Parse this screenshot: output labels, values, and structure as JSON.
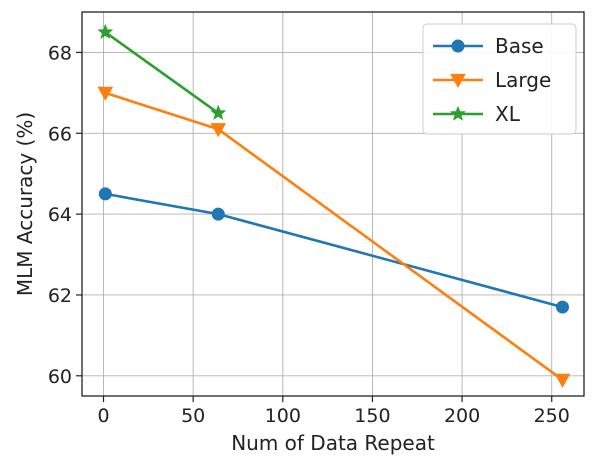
{
  "chart_data": {
    "type": "line",
    "title": "",
    "xlabel": "Num of Data Repeat",
    "ylabel": "MLM Accuracy (%)",
    "xlim": [
      -12,
      268
    ],
    "ylim": [
      59.5,
      69.0
    ],
    "xticks": [
      0,
      50,
      100,
      150,
      200,
      250
    ],
    "yticks": [
      60,
      62,
      64,
      66,
      68
    ],
    "grid": true,
    "legend": "top-right",
    "series": [
      {
        "name": "Base",
        "color": "#1f77b4",
        "marker": "circle",
        "x": [
          1,
          64,
          256
        ],
        "y": [
          64.5,
          64.0,
          61.7
        ]
      },
      {
        "name": "Large",
        "color": "#ff7f0e",
        "marker": "triangle-down",
        "x": [
          1,
          64,
          256
        ],
        "y": [
          67.0,
          66.1,
          59.9
        ]
      },
      {
        "name": "XL",
        "color": "#2ca02c",
        "marker": "star",
        "x": [
          1,
          64
        ],
        "y": [
          68.5,
          66.5
        ]
      }
    ]
  }
}
